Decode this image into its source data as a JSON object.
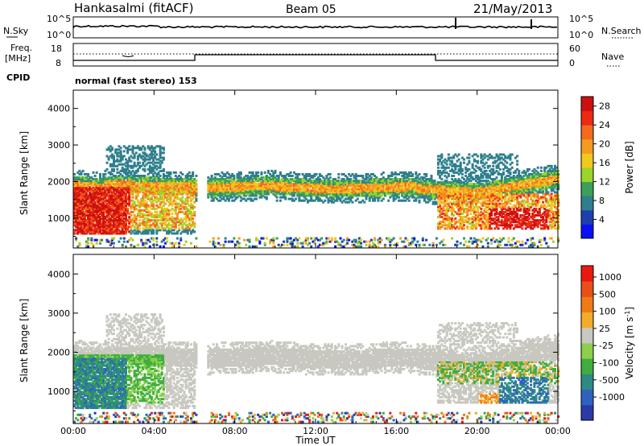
{
  "header": {
    "station": "Hankasalmi (fitACF)",
    "beam": "Beam 05",
    "date": "21/May/2013"
  },
  "strip": {
    "nsky_label": "N.Sky",
    "nsearch_label": "N.Search",
    "freq_label_top": "Freq.",
    "freq_label_unit": "[MHz]",
    "nave_label": "Nave",
    "cpid_label": "CPID",
    "noise_ticks_left": [
      "10^5",
      "10^0"
    ],
    "noise_ticks_right": [
      "10^5",
      "10^0"
    ],
    "freq_ticks": [
      "18",
      "8"
    ],
    "nave_ticks": [
      "60",
      "0"
    ],
    "cpid_text": "normal (fast stereo) 153"
  },
  "colors": {
    "power": [
      "#0a10f5",
      "#1f3fae",
      "#2f7f8d",
      "#3aa05a",
      "#9bd42a",
      "#f0c81e",
      "#f59a20",
      "#f26a1c",
      "#ee2a14",
      "#cc1010"
    ],
    "velocity": [
      "#2a3aa8",
      "#2f62c0",
      "#2e8a84",
      "#3fae3f",
      "#8ccf4a",
      "#c8c8c0",
      "#f2ac28",
      "#f07a18",
      "#e85018",
      "#e81a10"
    ]
  },
  "chart_data": [
    {
      "type": "heatmap",
      "title": "Power",
      "ylabel": "Slant Range [km]",
      "xlabel": "Time UT",
      "x_ticks": [
        "00:00",
        "04:00",
        "08:00",
        "12:00",
        "16:00",
        "20:00",
        "00:00"
      ],
      "xlim_hours": [
        0,
        24
      ],
      "y_ticks": [
        "4000",
        "3000",
        "2000",
        "1000"
      ],
      "ylim": [
        180,
        4500
      ],
      "colorbar_label": "Power [dB]",
      "colorbar_ticks": [
        "28",
        "24",
        "20",
        "16",
        "12",
        "8",
        "4"
      ],
      "colorbar_range": [
        0,
        30
      ]
    },
    {
      "type": "heatmap",
      "title": "Velocity",
      "ylabel": "Slant Range [km]",
      "xlabel": "Time UT",
      "x_ticks": [
        "00:00",
        "04:00",
        "08:00",
        "12:00",
        "16:00",
        "20:00",
        "00:00"
      ],
      "xlim_hours": [
        0,
        24
      ],
      "y_ticks": [
        "4000",
        "3000",
        "2000",
        "1000"
      ],
      "ylim": [
        180,
        4500
      ],
      "colorbar_label": "Velocity [m s",
      "colorbar_label_exp": "-1",
      "colorbar_ticks": [
        "1000",
        "500",
        "100",
        "25",
        "-25",
        "-100",
        "-500",
        "-1000"
      ]
    }
  ],
  "footer": {
    "xlabel": "Time UT"
  }
}
